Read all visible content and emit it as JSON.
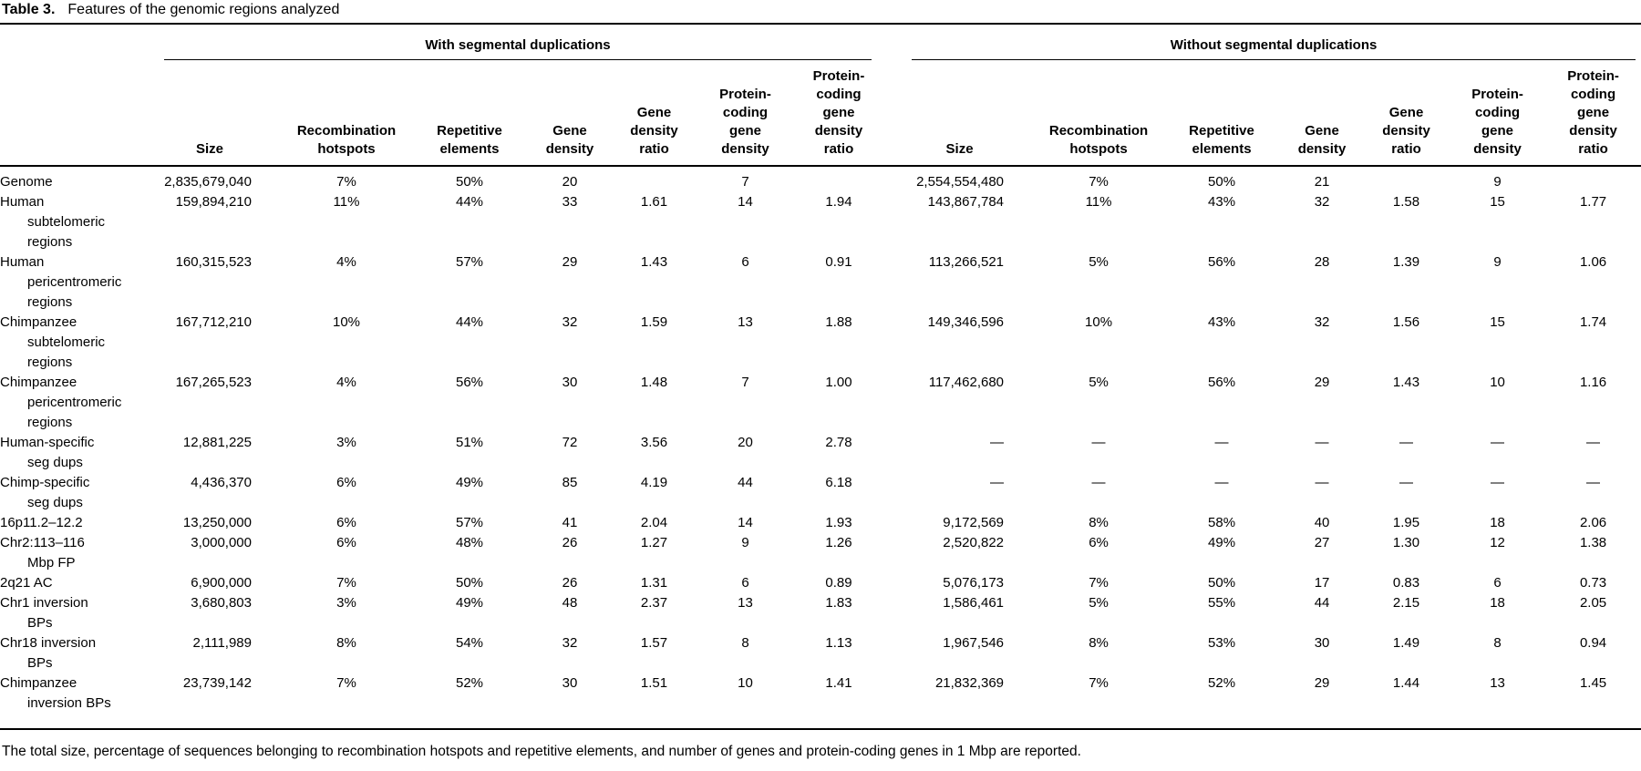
{
  "title": {
    "label": "Table 3.",
    "caption": "Features of the genomic regions analyzed"
  },
  "table": {
    "groups": [
      {
        "label": "With segmental duplications"
      },
      {
        "label": "Without segmental duplications"
      }
    ],
    "columns": [
      "Size",
      "Recombination\nhotspots",
      "Repetitive\nelements",
      "Gene\ndensity",
      "Gene\ndensity\nratio",
      "Protein-\ncoding\ngene\ndensity",
      "Protein-\ncoding\ngene\ndensity\nratio"
    ],
    "rows": [
      {
        "label": "Genome",
        "with": [
          "2,835,679,040",
          "7%",
          "50%",
          "20",
          "",
          "7",
          ""
        ],
        "without": [
          "2,554,554,480",
          "7%",
          "50%",
          "21",
          "",
          "9",
          ""
        ]
      },
      {
        "label": "Human\nsubtelomeric\nregions",
        "with": [
          "159,894,210",
          "11%",
          "44%",
          "33",
          "1.61",
          "14",
          "1.94"
        ],
        "without": [
          "143,867,784",
          "11%",
          "43%",
          "32",
          "1.58",
          "15",
          "1.77"
        ]
      },
      {
        "label": "Human\npericentromeric\nregions",
        "with": [
          "160,315,523",
          "4%",
          "57%",
          "29",
          "1.43",
          "6",
          "0.91"
        ],
        "without": [
          "113,266,521",
          "5%",
          "56%",
          "28",
          "1.39",
          "9",
          "1.06"
        ]
      },
      {
        "label": "Chimpanzee\nsubtelomeric\nregions",
        "with": [
          "167,712,210",
          "10%",
          "44%",
          "32",
          "1.59",
          "13",
          "1.88"
        ],
        "without": [
          "149,346,596",
          "10%",
          "43%",
          "32",
          "1.56",
          "15",
          "1.74"
        ]
      },
      {
        "label": "Chimpanzee\npericentromeric\nregions",
        "with": [
          "167,265,523",
          "4%",
          "56%",
          "30",
          "1.48",
          "7",
          "1.00"
        ],
        "without": [
          "117,462,680",
          "5%",
          "56%",
          "29",
          "1.43",
          "10",
          "1.16"
        ]
      },
      {
        "label": "Human-specific\nseg dups",
        "with": [
          "12,881,225",
          "3%",
          "51%",
          "72",
          "3.56",
          "20",
          "2.78"
        ],
        "without": [
          "—",
          "—",
          "—",
          "—",
          "—",
          "—",
          "—"
        ]
      },
      {
        "label": "Chimp-specific\nseg dups",
        "with": [
          "4,436,370",
          "6%",
          "49%",
          "85",
          "4.19",
          "44",
          "6.18"
        ],
        "without": [
          "—",
          "—",
          "—",
          "—",
          "—",
          "—",
          "—"
        ]
      },
      {
        "label": "16p11.2–12.2",
        "with": [
          "13,250,000",
          "6%",
          "57%",
          "41",
          "2.04",
          "14",
          "1.93"
        ],
        "without": [
          "9,172,569",
          "8%",
          "58%",
          "40",
          "1.95",
          "18",
          "2.06"
        ]
      },
      {
        "label": "Chr2:113–116\nMbp FP",
        "with": [
          "3,000,000",
          "6%",
          "48%",
          "26",
          "1.27",
          "9",
          "1.26"
        ],
        "without": [
          "2,520,822",
          "6%",
          "49%",
          "27",
          "1.30",
          "12",
          "1.38"
        ]
      },
      {
        "label": "2q21 AC",
        "with": [
          "6,900,000",
          "7%",
          "50%",
          "26",
          "1.31",
          "6",
          "0.89"
        ],
        "without": [
          "5,076,173",
          "7%",
          "50%",
          "17",
          "0.83",
          "6",
          "0.73"
        ]
      },
      {
        "label": "Chr1 inversion\nBPs",
        "with": [
          "3,680,803",
          "3%",
          "49%",
          "48",
          "2.37",
          "13",
          "1.83"
        ],
        "without": [
          "1,586,461",
          "5%",
          "55%",
          "44",
          "2.15",
          "18",
          "2.05"
        ]
      },
      {
        "label": "Chr18 inversion\nBPs",
        "with": [
          "2,111,989",
          "8%",
          "54%",
          "32",
          "1.57",
          "8",
          "1.13"
        ],
        "without": [
          "1,967,546",
          "8%",
          "53%",
          "30",
          "1.49",
          "8",
          "0.94"
        ]
      },
      {
        "label": "Chimpanzee\ninversion BPs",
        "with": [
          "23,739,142",
          "7%",
          "52%",
          "30",
          "1.51",
          "10",
          "1.41"
        ],
        "without": [
          "21,832,369",
          "7%",
          "52%",
          "29",
          "1.44",
          "13",
          "1.45"
        ]
      }
    ]
  },
  "footnote": "The total size, percentage of sequences belonging to recombination hotspots and repetitive elements, and number of genes and protein-coding genes in 1 Mbp are reported.",
  "colors": {
    "text": "#000000",
    "background": "#ffffff",
    "rule": "#000000"
  }
}
